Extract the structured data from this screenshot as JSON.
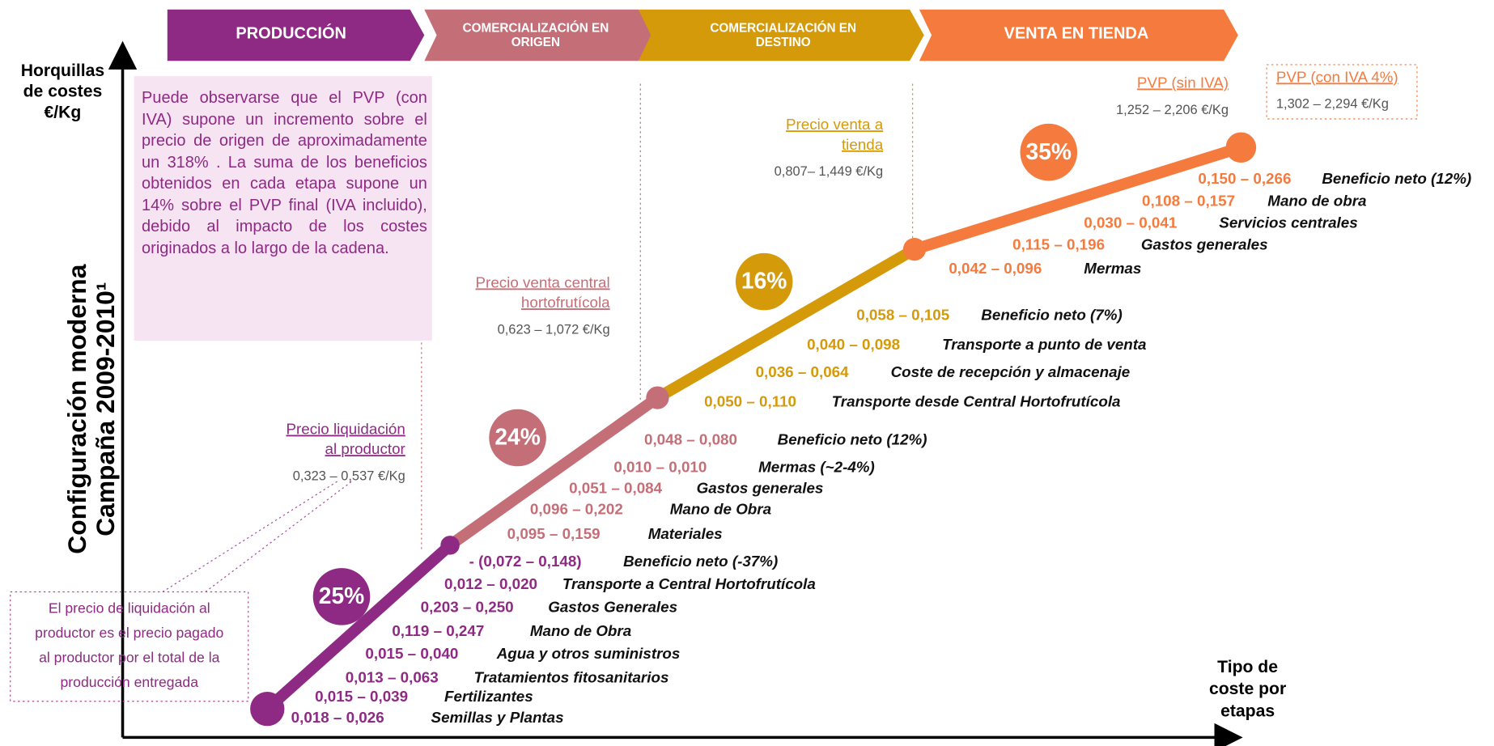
{
  "stages": [
    {
      "title_lines": [
        "PRODUCCIÓN"
      ]
    },
    {
      "title_lines": [
        "COMERCIALIZACIÓN EN",
        "ORIGEN"
      ]
    },
    {
      "title_lines": [
        "COMERCIALIZACIÓN EN",
        "DESTINO"
      ]
    },
    {
      "title_lines": [
        "VENTA EN TIENDA"
      ]
    }
  ],
  "y_axis_label": [
    "Horquillas",
    "de costes",
    "€/Kg"
  ],
  "x_axis_label": [
    "Tipo de",
    "coste por",
    "etapas"
  ],
  "side_title": [
    "Configuración moderna",
    "Campaña 2009-2010¹"
  ],
  "note": "Puede observarse que el PVP (con IVA) supone un incremento sobre el precio de origen de aproximadamente un 318% . La suma de los beneficios obtenidos en cada etapa supone un 14% sobre el PVP final (IVA incluido), debido al impacto de los costes originados a lo largo de la cadena.",
  "callout": [
    "El precio de liquidación al",
    "productor es el precio pagado",
    "al productor por el total de la",
    "producción entregada"
  ],
  "prices": [
    {
      "label": [
        "Precio liquidación",
        "al productor"
      ],
      "value": "0,323 – 0,537 €/Kg"
    },
    {
      "label": [
        "Precio venta central",
        "hortofrutícola"
      ],
      "value": "0,623 – 1,072 €/Kg"
    },
    {
      "label": [
        "Precio venta a",
        "tienda"
      ],
      "value": "0,807– 1,449 €/Kg"
    },
    {
      "label": [
        "PVP (sin IVA)"
      ],
      "value": "1,252 – 2,206 €/Kg"
    },
    {
      "label": [
        "PVP (con IVA 4%)"
      ],
      "value": "1,302 – 2,294 €/Kg"
    }
  ],
  "percentages": [
    "25%",
    "24%",
    "16%",
    "35%"
  ],
  "cost_items": [
    [
      [
        "0,018 – 0,026",
        "Semillas y Plantas"
      ],
      [
        "0,015 – 0,039",
        "Fertilizantes"
      ],
      [
        "0,013 – 0,063",
        "Tratamientos fitosanitarios"
      ],
      [
        "0,015 – 0,040",
        "Agua y otros suministros"
      ],
      [
        "0,119 – 0,247",
        "Mano de Obra"
      ],
      [
        "0,203 – 0,250",
        "Gastos Generales"
      ],
      [
        "0,012 – 0,020",
        "Transporte a Central Hortofrutícola"
      ],
      [
        "- (0,072 – 0,148)",
        "Beneficio neto (-37%)"
      ]
    ],
    [
      [
        "0,095 – 0,159",
        "Materiales"
      ],
      [
        "0,096 – 0,202",
        "Mano de Obra"
      ],
      [
        "0,051 – 0,084",
        "Gastos generales"
      ],
      [
        "0,010 – 0,010",
        "Mermas  (~2-4%)"
      ],
      [
        "0,048 – 0,080",
        "Beneficio neto (12%)"
      ]
    ],
    [
      [
        "0,050 – 0,110",
        "Transporte desde Central Hortofrutícola"
      ],
      [
        "0,036 – 0,064",
        "Coste de recepción y almacenaje"
      ],
      [
        "0,040 – 0,098",
        "Transporte a punto de venta"
      ],
      [
        "0,058 – 0,105",
        "Beneficio neto (7%)"
      ]
    ],
    [
      [
        "0,042 – 0,096",
        "Mermas"
      ],
      [
        "0,115 – 0,196",
        "Gastos generales"
      ],
      [
        "0,030 – 0,041",
        "Servicios centrales"
      ],
      [
        "0,108 – 0,157",
        "Mano de obra"
      ],
      [
        "0,150 – 0,266",
        "Beneficio neto (12%)"
      ]
    ]
  ]
}
